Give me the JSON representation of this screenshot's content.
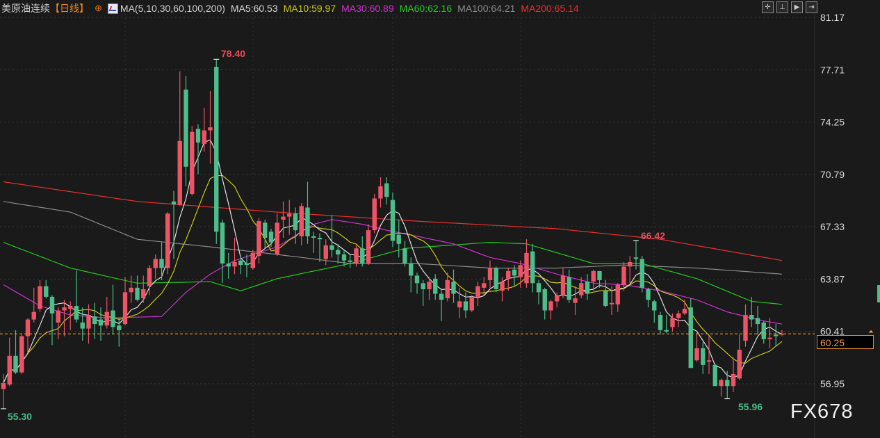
{
  "header": {
    "title": "美原油连续",
    "period": "【日线】",
    "target_icon": "crosshair-target-icon",
    "ma_icon": "ma-chart-icon",
    "ma_params": "MA(5,10,30,60,100,200)",
    "ma_values": [
      {
        "label": "MA5:60.53",
        "color": "#d8d8d8"
      },
      {
        "label": "MA10:59.97",
        "color": "#c8c814"
      },
      {
        "label": "MA30:60.89",
        "color": "#d030d0"
      },
      {
        "label": "MA60:62.16",
        "color": "#22c822"
      },
      {
        "label": "MA100:64.21",
        "color": "#8a8a8a"
      },
      {
        "label": "MA200:65.14",
        "color": "#e83030"
      }
    ]
  },
  "toolbar": {
    "icons": [
      "crosshair-icon",
      "zoom-range-icon",
      "play-icon",
      "exit-icon"
    ]
  },
  "last_price": {
    "label": "60.25",
    "value": 60.25,
    "color": "#e08a30"
  },
  "annotations": {
    "high": {
      "label": "78.40",
      "value": 78.4
    },
    "low": {
      "label": "55.30",
      "value": 55.3
    },
    "recent_high": {
      "label": "66.42",
      "value": 66.42
    },
    "recent_low": {
      "label": "55.96",
      "value": 55.96
    }
  },
  "watermark": "FX678",
  "chart_data": {
    "type": "candlestick",
    "ylim": [
      55.3,
      81.17
    ],
    "y_ticks": [
      "81.17",
      "77.71",
      "74.25",
      "70.79",
      "67.33",
      "63.87",
      "60.41",
      "56.95"
    ],
    "grid": true,
    "colors": {
      "up": "#ef5466",
      "down": "#4cbd8b"
    },
    "ohlc": [
      [
        56.6,
        57.6,
        55.3,
        57.0
      ],
      [
        56.9,
        60.0,
        56.8,
        58.8
      ],
      [
        58.8,
        60.5,
        57.6,
        57.7
      ],
      [
        57.7,
        60.2,
        57.6,
        60.1
      ],
      [
        60.1,
        61.3,
        59.0,
        61.2
      ],
      [
        61.2,
        63.3,
        61.0,
        61.7
      ],
      [
        61.9,
        63.8,
        61.7,
        63.4
      ],
      [
        63.4,
        63.8,
        62.6,
        62.7
      ],
      [
        62.7,
        62.8,
        59.5,
        61.6
      ],
      [
        61.0,
        62.0,
        59.9,
        61.8
      ],
      [
        61.8,
        62.5,
        60.1,
        62.0
      ],
      [
        61.9,
        62.4,
        60.5,
        62.1
      ],
      [
        62.1,
        64.4,
        61.0,
        61.2
      ],
      [
        61.0,
        62.0,
        59.8,
        60.6
      ],
      [
        60.6,
        62.2,
        59.6,
        61.5
      ],
      [
        61.4,
        62.3,
        59.9,
        60.9
      ],
      [
        61.2,
        62.0,
        59.8,
        60.8
      ],
      [
        60.8,
        62.7,
        60.6,
        61.7
      ],
      [
        61.8,
        63.5,
        60.2,
        60.7
      ],
      [
        60.8,
        61.3,
        59.4,
        60.5
      ],
      [
        60.9,
        64.0,
        60.8,
        63.0
      ],
      [
        63.0,
        64.1,
        62.3,
        63.3
      ],
      [
        63.3,
        64.1,
        62.4,
        62.5
      ],
      [
        62.6,
        64.1,
        62.3,
        63.2
      ],
      [
        63.4,
        64.8,
        62.8,
        64.6
      ],
      [
        64.6,
        65.5,
        63.9,
        65.2
      ],
      [
        65.2,
        66.3,
        63.8,
        64.6
      ],
      [
        64.6,
        68.3,
        64.2,
        68.2
      ],
      [
        69.0,
        69.7,
        65.2,
        68.8
      ],
      [
        68.8,
        77.6,
        68.7,
        73.0
      ],
      [
        76.4,
        77.3,
        70.0,
        71.3
      ],
      [
        69.5,
        74.0,
        69.4,
        73.6
      ],
      [
        73.8,
        74.1,
        70.8,
        72.9
      ],
      [
        72.8,
        75.2,
        72.3,
        73.7
      ],
      [
        73.7,
        76.3,
        71.5,
        73.9
      ],
      [
        77.9,
        78.4,
        66.2,
        67.0
      ],
      [
        67.6,
        67.8,
        63.6,
        64.9
      ],
      [
        64.9,
        65.6,
        63.9,
        64.7
      ],
      [
        64.7,
        66.6,
        64.2,
        65.0
      ],
      [
        65.1,
        65.4,
        64.2,
        64.8
      ],
      [
        64.9,
        65.5,
        64.0,
        64.8
      ],
      [
        64.6,
        65.8,
        64.5,
        65.6
      ],
      [
        65.4,
        67.9,
        64.9,
        67.7
      ],
      [
        67.6,
        67.8,
        65.9,
        66.6
      ],
      [
        67.0,
        67.2,
        66.0,
        66.3
      ],
      [
        65.5,
        68.2,
        65.4,
        67.6
      ],
      [
        67.8,
        69.0,
        66.6,
        68.0
      ],
      [
        68.0,
        69.1,
        66.8,
        68.2
      ],
      [
        68.2,
        68.6,
        66.2,
        67.1
      ],
      [
        66.7,
        68.9,
        66.1,
        68.7
      ],
      [
        68.6,
        70.3,
        66.2,
        66.7
      ],
      [
        66.7,
        67.0,
        65.6,
        66.6
      ],
      [
        66.6,
        66.9,
        65.0,
        66.5
      ],
      [
        65.2,
        66.5,
        64.8,
        66.1
      ],
      [
        66.1,
        68.1,
        65.3,
        65.8
      ],
      [
        65.8,
        66.2,
        64.9,
        65.5
      ],
      [
        65.5,
        65.8,
        64.7,
        65.1
      ],
      [
        65.1,
        65.5,
        64.6,
        65.0
      ],
      [
        64.9,
        66.1,
        64.7,
        65.9
      ],
      [
        65.9,
        66.7,
        64.7,
        64.9
      ],
      [
        64.9,
        67.5,
        64.8,
        67.1
      ],
      [
        67.1,
        69.5,
        66.9,
        69.2
      ],
      [
        69.2,
        70.6,
        68.6,
        70.0
      ],
      [
        70.2,
        70.6,
        68.8,
        69.3
      ],
      [
        69.1,
        69.6,
        66.0,
        66.4
      ],
      [
        66.8,
        67.8,
        65.3,
        66.2
      ],
      [
        65.9,
        66.4,
        64.7,
        64.9
      ],
      [
        64.9,
        65.3,
        63.0,
        64.1
      ],
      [
        64.1,
        64.3,
        62.9,
        63.6
      ],
      [
        63.6,
        63.8,
        62.1,
        63.2
      ],
      [
        63.2,
        64.0,
        62.5,
        63.7
      ],
      [
        63.9,
        64.2,
        62.5,
        62.9
      ],
      [
        62.9,
        63.2,
        61.1,
        62.5
      ],
      [
        62.6,
        64.3,
        62.4,
        63.8
      ],
      [
        63.7,
        64.5,
        62.3,
        62.9
      ],
      [
        62.0,
        63.3,
        61.3,
        62.4
      ],
      [
        62.4,
        63.0,
        61.3,
        61.8
      ],
      [
        61.8,
        62.8,
        61.7,
        62.7
      ],
      [
        62.7,
        63.7,
        62.1,
        63.4
      ],
      [
        63.3,
        64.0,
        62.8,
        63.6
      ],
      [
        63.8,
        65.1,
        63.3,
        64.6
      ],
      [
        64.6,
        64.7,
        63.0,
        63.2
      ],
      [
        63.1,
        64.0,
        62.4,
        63.7
      ],
      [
        63.9,
        64.6,
        63.1,
        64.4
      ],
      [
        64.5,
        64.8,
        63.4,
        64.1
      ],
      [
        64.0,
        65.1,
        63.3,
        64.8
      ],
      [
        63.6,
        66.5,
        63.3,
        65.6
      ],
      [
        65.7,
        66.2,
        63.0,
        63.6
      ],
      [
        63.6,
        63.8,
        62.2,
        63.0
      ],
      [
        63.2,
        63.3,
        61.2,
        61.8
      ],
      [
        61.8,
        62.5,
        61.2,
        62.4
      ],
      [
        62.4,
        63.0,
        62.0,
        62.8
      ],
      [
        62.8,
        64.6,
        62.6,
        64.1
      ],
      [
        64.0,
        64.5,
        62.3,
        62.5
      ],
      [
        62.3,
        63.4,
        61.5,
        62.6
      ],
      [
        62.8,
        64.0,
        62.6,
        63.6
      ],
      [
        63.7,
        64.2,
        62.5,
        62.9
      ],
      [
        63.7,
        64.5,
        63.1,
        64.4
      ],
      [
        64.4,
        64.4,
        63.3,
        63.8
      ],
      [
        63.1,
        63.8,
        62.0,
        62.1
      ],
      [
        62.2,
        63.4,
        61.5,
        62.3
      ],
      [
        62.2,
        63.6,
        61.7,
        63.5
      ],
      [
        63.5,
        65.0,
        63.1,
        64.7
      ],
      [
        64.7,
        65.4,
        63.6,
        65.0
      ],
      [
        65.3,
        66.42,
        64.5,
        65.2
      ],
      [
        65.2,
        65.4,
        63.0,
        63.3
      ],
      [
        63.2,
        63.3,
        62.0,
        62.5
      ],
      [
        62.4,
        62.5,
        61.0,
        61.8
      ],
      [
        61.5,
        61.7,
        60.2,
        60.5
      ],
      [
        60.5,
        61.5,
        60.3,
        60.4
      ],
      [
        60.7,
        61.6,
        60.4,
        61.3
      ],
      [
        61.3,
        61.8,
        60.7,
        61.6
      ],
      [
        61.6,
        62.5,
        61.5,
        61.9
      ],
      [
        62.0,
        62.6,
        58.0,
        58.0
      ],
      [
        58.5,
        60.3,
        58.4,
        59.3
      ],
      [
        59.3,
        59.7,
        57.6,
        58.2
      ],
      [
        58.4,
        60.1,
        57.6,
        58.5
      ],
      [
        58.2,
        58.3,
        56.8,
        56.8
      ],
      [
        56.8,
        57.3,
        56.1,
        57.2
      ],
      [
        57.2,
        57.8,
        55.96,
        56.8
      ],
      [
        56.8,
        58.7,
        56.4,
        57.6
      ],
      [
        57.3,
        60.2,
        57.2,
        59.2
      ],
      [
        59.8,
        62.2,
        59.4,
        61.5
      ],
      [
        61.5,
        62.7,
        60.7,
        61.2
      ],
      [
        61.3,
        62.1,
        60.2,
        60.9
      ],
      [
        61.0,
        61.1,
        59.6,
        59.9
      ],
      [
        59.9,
        61.3,
        59.3,
        60.0
      ],
      [
        60.2,
        60.9,
        59.4,
        60.1
      ],
      [
        60.2,
        60.5,
        60.1,
        60.25
      ]
    ],
    "ma_series": [
      {
        "name": "MA30",
        "color": "#d030d0",
        "points": [
          [
            0,
            63.5
          ],
          [
            6,
            62.1
          ],
          [
            11,
            61.5
          ],
          [
            17,
            61.3
          ],
          [
            26,
            61.4
          ],
          [
            30,
            63.0
          ],
          [
            34,
            64.2
          ],
          [
            38,
            65.1
          ],
          [
            45,
            66.0
          ],
          [
            51,
            67.5
          ],
          [
            54,
            67.8
          ],
          [
            59,
            67.5
          ],
          [
            63,
            67.1
          ],
          [
            68,
            66.7
          ],
          [
            74,
            66.2
          ],
          [
            80,
            65.3
          ],
          [
            85,
            64.9
          ],
          [
            91,
            64.2
          ],
          [
            97,
            63.6
          ],
          [
            102,
            63.5
          ],
          [
            108,
            63.1
          ],
          [
            114,
            62.5
          ],
          [
            119,
            61.7
          ],
          [
            125,
            61.1
          ],
          [
            128,
            60.9
          ]
        ]
      },
      {
        "name": "MA60",
        "color": "#22c822",
        "points": [
          [
            0,
            66.3
          ],
          [
            11,
            64.6
          ],
          [
            22,
            63.6
          ],
          [
            34,
            63.7
          ],
          [
            39,
            63.1
          ],
          [
            45,
            63.9
          ],
          [
            57,
            64.9
          ],
          [
            66,
            65.9
          ],
          [
            80,
            66.3
          ],
          [
            86,
            66.2
          ],
          [
            97,
            64.9
          ],
          [
            105,
            64.9
          ],
          [
            114,
            63.9
          ],
          [
            123,
            62.4
          ],
          [
            128,
            62.2
          ]
        ]
      },
      {
        "name": "MA100",
        "color": "#8a8a8a",
        "points": [
          [
            0,
            69.0
          ],
          [
            11,
            68.3
          ],
          [
            22,
            66.5
          ],
          [
            34,
            66.0
          ],
          [
            45,
            65.5
          ],
          [
            57,
            64.9
          ],
          [
            68,
            64.9
          ],
          [
            80,
            64.6
          ],
          [
            91,
            64.6
          ],
          [
            102,
            64.8
          ],
          [
            114,
            64.6
          ],
          [
            128,
            64.2
          ]
        ]
      },
      {
        "name": "MA200",
        "color": "#e83030",
        "points": [
          [
            0,
            70.3
          ],
          [
            22,
            69.0
          ],
          [
            45,
            68.3
          ],
          [
            68,
            67.7
          ],
          [
            91,
            67.2
          ],
          [
            108,
            66.5
          ],
          [
            128,
            65.1
          ]
        ]
      }
    ]
  }
}
